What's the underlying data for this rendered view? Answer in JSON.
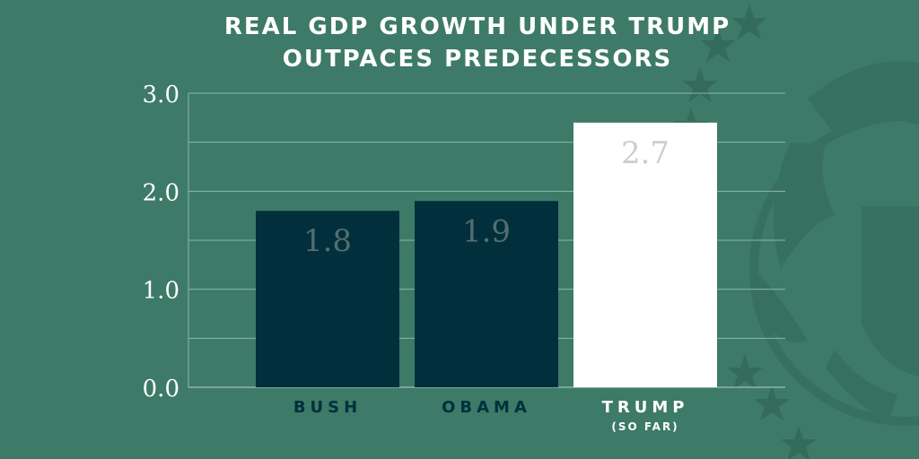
{
  "title_lines": [
    "REAL GDP GROWTH UNDER TRUMP",
    "OUTPACES PREDECESSORS"
  ],
  "colors": {
    "background": "#3d7a67",
    "bar_dark": "#01303c",
    "bar_highlight": "#ffffff",
    "label_dark": "#01303c",
    "label_light": "#ffffff",
    "value_on_dark": "#556d70",
    "value_on_light": "#c9cfcd",
    "grid": "#8fb6a8",
    "tick_text": "#ffffff"
  },
  "chart_data": {
    "type": "bar",
    "title": "REAL GDP GROWTH UNDER TRUMP OUTPACES PREDECESSORS",
    "categories": [
      "BUSH",
      "OBAMA",
      "TRUMP"
    ],
    "category_sublabels": [
      "",
      "",
      "(SO FAR)"
    ],
    "values": [
      1.8,
      1.9,
      2.7
    ],
    "value_labels": [
      "1.8",
      "1.9",
      "2.7"
    ],
    "highlight": "TRUMP",
    "ylim": [
      0,
      3.0
    ],
    "yticks": [
      0,
      1.0,
      2.0,
      3.0
    ],
    "ytick_labels": [
      "0.0",
      "1.0",
      "2.0",
      "3.0"
    ],
    "minor_grid_step": 0.5,
    "grid": true,
    "xlabel": "",
    "ylabel": ""
  }
}
